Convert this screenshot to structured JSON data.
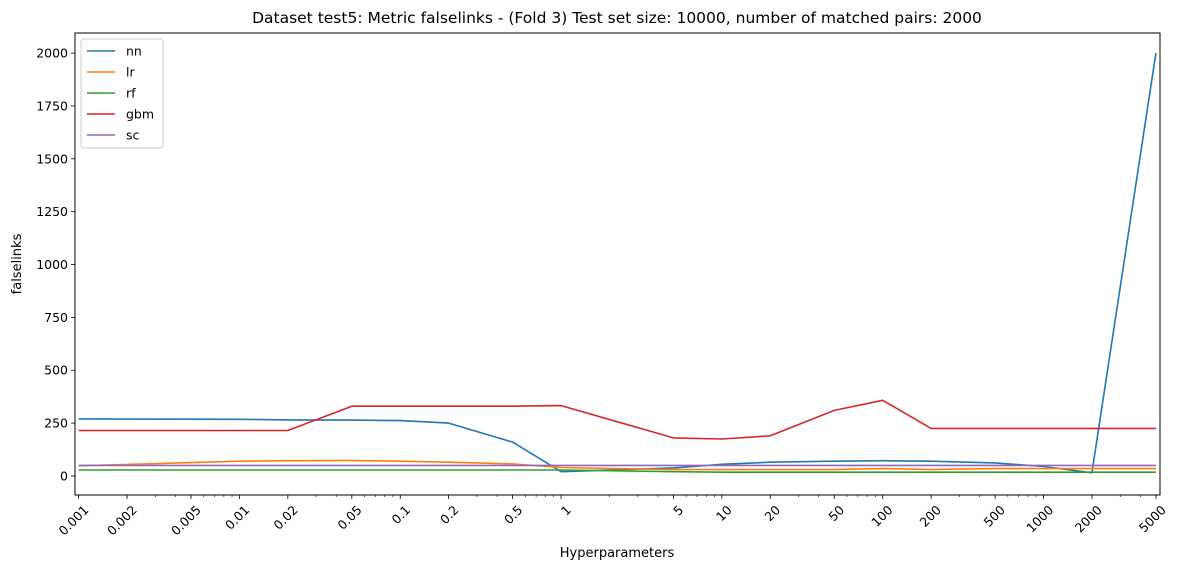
{
  "chart_data": {
    "type": "line",
    "title": "Dataset test5: Metric falselinks - (Fold 3) Test set size: 10000, number of matched pairs: 2000",
    "xlabel": "Hyperparameters",
    "ylabel": "falselinks",
    "x_scale": "log",
    "x": [
      0.001,
      0.01,
      0.02,
      0.05,
      0.1,
      0.2,
      0.5,
      1,
      5,
      10,
      20,
      50,
      100,
      200,
      500,
      1000,
      2000,
      5000
    ],
    "x_tick_labels": [
      "0.001",
      "0.002",
      "0.005",
      "0.01",
      "0.02",
      "0.05",
      "0.1",
      "0.2",
      "0.5",
      "1",
      "5",
      "10",
      "20",
      "50",
      "100",
      "200",
      "500",
      "1000",
      "2000",
      "5000"
    ],
    "x_tick_values": [
      0.001,
      0.002,
      0.005,
      0.01,
      0.02,
      0.05,
      0.1,
      0.2,
      0.5,
      1,
      5,
      10,
      20,
      50,
      100,
      200,
      500,
      1000,
      2000,
      5000
    ],
    "xlim": [
      0.00095,
      5300
    ],
    "ylim": [
      -90,
      2095
    ],
    "y_ticks": [
      0,
      250,
      500,
      750,
      1000,
      1250,
      1500,
      1750,
      2000
    ],
    "grid": false,
    "legend_position": "upper-left",
    "series": [
      {
        "name": "nn",
        "color": "#1f77b4",
        "values": [
          270,
          268,
          265,
          264,
          262,
          250,
          160,
          20,
          38,
          55,
          65,
          70,
          72,
          70,
          62,
          45,
          15,
          2000
        ]
      },
      {
        "name": "lr",
        "color": "#ff7f0e",
        "values": [
          48,
          70,
          72,
          73,
          70,
          65,
          57,
          40,
          30,
          30,
          30,
          30,
          35,
          30,
          35,
          35,
          35,
          35
        ]
      },
      {
        "name": "rf",
        "color": "#2ca02c",
        "values": [
          28,
          28,
          28,
          28,
          28,
          28,
          28,
          28,
          20,
          18,
          18,
          18,
          18,
          18,
          18,
          18,
          18,
          18
        ]
      },
      {
        "name": "gbm",
        "color": "#d62728",
        "values": [
          215,
          215,
          215,
          330,
          330,
          330,
          330,
          333,
          180,
          175,
          190,
          310,
          358,
          225,
          225,
          225,
          225,
          225
        ]
      },
      {
        "name": "sc",
        "color": "#9467bd",
        "values": [
          50,
          50,
          50,
          50,
          50,
          50,
          50,
          50,
          50,
          50,
          50,
          50,
          50,
          50,
          50,
          50,
          50,
          50
        ]
      }
    ]
  }
}
